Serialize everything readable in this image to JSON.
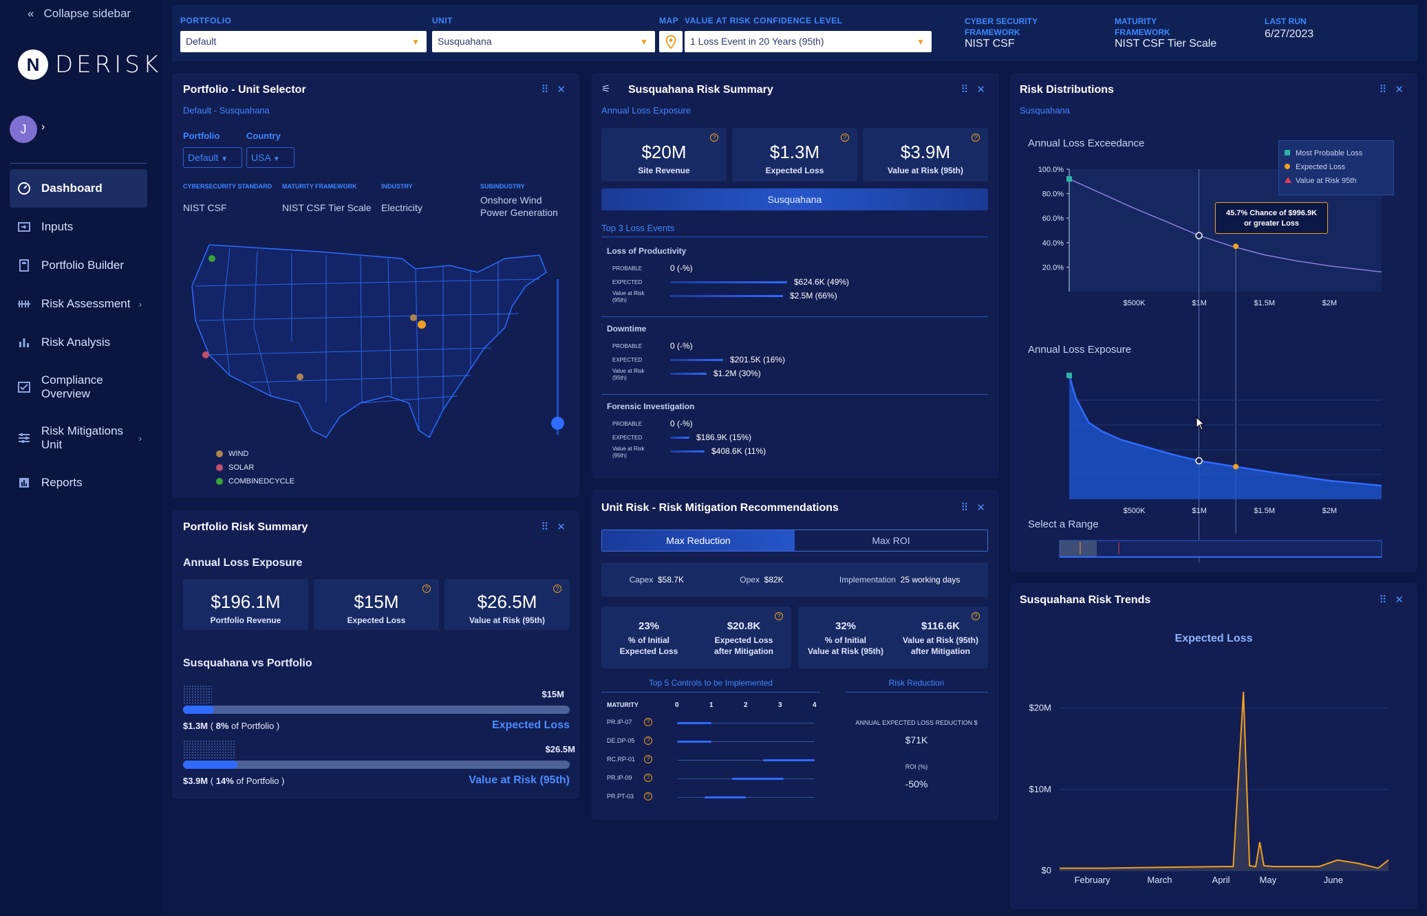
{
  "sidebar": {
    "collapse_label": "Collapse sidebar",
    "logo_letter": "N",
    "logo_text": "DERISK",
    "avatar_initial": "J",
    "items": [
      {
        "label": "Dashboard",
        "icon": "dashboard-icon"
      },
      {
        "label": "Inputs",
        "icon": "inputs-icon"
      },
      {
        "label": "Portfolio Builder",
        "icon": "portfolio-builder-icon"
      },
      {
        "label": "Risk Assessment",
        "icon": "risk-assessment-icon"
      },
      {
        "label": "Risk Analysis",
        "icon": "risk-analysis-icon"
      },
      {
        "label": "Compliance",
        "label2": "Overview",
        "icon": "compliance-icon"
      },
      {
        "label": "Risk Mitigations",
        "label2": "Unit",
        "icon": "risk-mitigations-icon"
      },
      {
        "label": "Reports",
        "icon": "reports-icon"
      }
    ]
  },
  "topbar": {
    "portfolio_label": "PORTFOLIO",
    "portfolio_value": "Default",
    "unit_label": "UNIT",
    "unit_value": "Susquahana",
    "map_label": "MAP",
    "var_label": "VALUE AT RISK CONFIDENCE LEVEL",
    "var_value": "1 Loss Event in 20 Years (95th)",
    "csf_label1": "CYBER SECURITY",
    "csf_label2": "FRAMEWORK",
    "csf_value": "NIST CSF",
    "mf_label1": "MATURITY",
    "mf_label2": "FRAMEWORK",
    "mf_value": "NIST CSF Tier Scale",
    "lastrun_label": "LAST RUN",
    "lastrun_value": "6/27/2023"
  },
  "unit_selector": {
    "title": "Portfolio - Unit Selector",
    "subtitle": "Default - Susquahana",
    "portfolio_label": "Portfolio",
    "portfolio_value": "Default",
    "country_label": "Country",
    "country_value": "USA",
    "fields": [
      {
        "label": "CYBERSECURITY STANDARD",
        "value": "NIST CSF"
      },
      {
        "label": "MATURITY FRAMEWORK",
        "value": "NIST CSF Tier Scale"
      },
      {
        "label": "INDUSTRY",
        "value": "Electricity"
      },
      {
        "label": "SUBINDUSTRY",
        "value": "Onshore Wind",
        "value2": "Power Generation"
      }
    ],
    "legend": [
      {
        "label": "WIND",
        "color": "#b08250"
      },
      {
        "label": "SOLAR",
        "color": "#c0506a"
      },
      {
        "label": "COMBINEDCYCLE",
        "color": "#3aa33a"
      }
    ]
  },
  "risk_summary": {
    "title": "Susquahana Risk Summary",
    "subtitle": "Annual Loss Exposure",
    "cards": [
      {
        "value": "$20M",
        "label": "Site Revenue"
      },
      {
        "value": "$1.3M",
        "label": "Expected Loss"
      },
      {
        "value": "$3.9M",
        "label": "Value at Risk (95th)"
      }
    ],
    "unit_tab": "Susquahana",
    "top3_label": "Top 3 Loss Events",
    "row_labels": {
      "probable": "PROBABLE",
      "expected": "EXPECTED",
      "var1": "Value at Risk",
      "var2": "(95th)"
    },
    "events": [
      {
        "title": "Loss of Productivity",
        "probable": "0 (-%)",
        "expected": "$624.6K (49%)",
        "var": "$2.5M (66%)",
        "exp_frac": 0.49,
        "var_frac": 0.66
      },
      {
        "title": "Downtime",
        "probable": "0 (-%)",
        "expected": "$201.5K (16%)",
        "var": "$1.2M (30%)",
        "exp_frac": 0.16,
        "var_frac": 0.3
      },
      {
        "title": "Forensic Investigation",
        "probable": "0 (-%)",
        "expected": "$186.9K (15%)",
        "var": "$408.6K (11%)",
        "exp_frac": 0.15,
        "var_frac": 0.11
      }
    ]
  },
  "portfolio_summary": {
    "title": "Portfolio Risk Summary",
    "section": "Annual Loss Exposure",
    "cards": [
      {
        "value": "$196.1M",
        "label": "Portfolio Revenue"
      },
      {
        "value": "$15M",
        "label": "Expected Loss"
      },
      {
        "value": "$26.5M",
        "label": "Value at Risk (95th)"
      }
    ],
    "vs_title": "Susquahana vs Portfolio",
    "bars": [
      {
        "total": "$15M",
        "val": "$1.3M",
        "pre": "(",
        "pct": "8%",
        "post": "of Portfolio )",
        "name": "Expected Loss",
        "frac": 0.08
      },
      {
        "total": "$26.5M",
        "val": "$3.9M",
        "pre": "(",
        "pct": "14%",
        "post": "of Portfolio )",
        "name": "Value at Risk (95th)",
        "frac": 0.14
      }
    ]
  },
  "mitigation": {
    "title": "Unit Risk - Risk Mitigation Recommendations",
    "tab_active": "Max Reduction",
    "tab_other": "Max ROI",
    "capex_label": "Capex",
    "capex": "$58.7K",
    "opex_label": "Opex",
    "opex": "$82K",
    "impl_label": "Implementation",
    "impl": "25 working days",
    "cards": [
      {
        "value": "23%",
        "l1": "% of Initial",
        "l2": "Expected Loss"
      },
      {
        "value": "$20.8K",
        "l1": "Expected Loss",
        "l2": "after Mitigation"
      },
      {
        "value": "32%",
        "l1": "% of Initial",
        "l2": "Value at Risk (95th)"
      },
      {
        "value": "$116.6K",
        "l1": "Value at Risk (95th)",
        "l2": "after Mitigation"
      }
    ],
    "controls_title": "Top 5 Controls to be Implemented",
    "maturity_label": "MATURITY",
    "scale": [
      "0",
      "1",
      "2",
      "3",
      "4"
    ],
    "controls": [
      {
        "id": "PR.IP-07",
        "from": 0.0,
        "to": 1.0
      },
      {
        "id": "DE.DP-05",
        "from": 0.0,
        "to": 1.0
      },
      {
        "id": "RC.RP-01",
        "from": 2.5,
        "to": 4.0
      },
      {
        "id": "PR.IP-09",
        "from": 1.6,
        "to": 3.1
      },
      {
        "id": "PR.PT-03",
        "from": 0.8,
        "to": 2.0
      }
    ],
    "reduction_title": "Risk Reduction",
    "annual_label": "ANNUAL EXPECTED LOSS REDUCTION $",
    "annual_value": "$71K",
    "roi_label": "ROI (%)",
    "roi_value": "-50%"
  },
  "distributions": {
    "title": "Risk Distributions",
    "subtitle": "Susquahana",
    "exceedance_title": "Annual Loss Exceedance",
    "exposure_title": "Annual Loss Exposure",
    "range_title": "Select a Range",
    "y_ticks": [
      "100.0%",
      "80.0%",
      "60.0%",
      "40.0%",
      "20.0%"
    ],
    "x_ticks": [
      "$500K",
      "$1M",
      "$1.5M",
      "$2M"
    ],
    "legend": [
      {
        "label": "Most Probable Loss",
        "color": "#2fb3a8"
      },
      {
        "label": "Expected Loss",
        "color": "#f0a020"
      },
      {
        "label": "Value at Risk 95th",
        "color": "#e04050"
      }
    ],
    "tooltip_line1": "45.7% Chance of $996.9K",
    "tooltip_line2": "or greater Loss"
  },
  "trends": {
    "title": "Susquahana Risk Trends",
    "chart_title": "Expected Loss",
    "y_ticks": [
      "$20M",
      "$10M",
      "$0"
    ],
    "x_ticks": [
      "February",
      "March",
      "April",
      "May",
      "June"
    ]
  },
  "chart_data": [
    {
      "type": "line",
      "title": "Annual Loss Exceedance",
      "xlabel": "",
      "ylabel": "",
      "x": [
        0,
        250000,
        500000,
        750000,
        1000000,
        1250000,
        1500000,
        1750000,
        2000000,
        2400000
      ],
      "series": [
        {
          "values": [
            0.92,
            0.8,
            0.68,
            0.57,
            0.457,
            0.37,
            0.3,
            0.25,
            0.21,
            0.16
          ]
        }
      ],
      "markers": {
        "most_probable": [
          0,
          0.92
        ],
        "expected_loss": [
          1280000,
          0.37
        ],
        "hover": [
          996900,
          0.457
        ]
      },
      "ylim": [
        0,
        1
      ]
    },
    {
      "type": "area",
      "title": "Annual Loss Exposure",
      "x": [
        0,
        50000,
        100000,
        150000,
        250000,
        400000,
        600000,
        800000,
        1000000,
        1300000,
        1600000,
        2000000,
        2400000
      ],
      "series": [
        {
          "values": [
            1.0,
            0.82,
            0.72,
            0.62,
            0.55,
            0.48,
            0.42,
            0.36,
            0.31,
            0.26,
            0.21,
            0.15,
            0.11
          ]
        }
      ]
    },
    {
      "type": "line",
      "title": "Expected Loss",
      "x": [
        "Jan 25",
        "Feb 15",
        "Mar 15",
        "Apr 15",
        "Apr 20",
        "Apr 25",
        "Apr 28",
        "May 1",
        "May 3",
        "May 5",
        "May 10",
        "Jun 1",
        "Jun 10",
        "Jun 20",
        "Jun 30",
        "Jul 5"
      ],
      "series": [
        {
          "values": [
            0.3,
            0.3,
            0.4,
            0.5,
            0.5,
            22.0,
            0.6,
            0.5,
            3.5,
            0.6,
            0.5,
            0.5,
            1.3,
            0.9,
            0.3,
            1.3
          ]
        }
      ],
      "ylim": [
        0,
        22
      ]
    }
  ]
}
